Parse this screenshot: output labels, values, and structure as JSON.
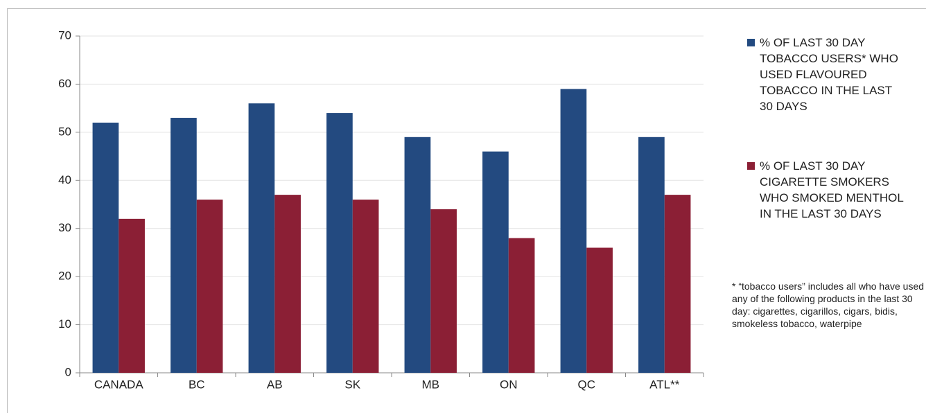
{
  "chart_data": {
    "type": "bar",
    "categories": [
      "CANADA",
      "BC",
      "AB",
      "SK",
      "MB",
      "ON",
      "QC",
      "ATL**"
    ],
    "series": [
      {
        "name": "% OF LAST 30 DAY TOBACCO USERS* WHO USED FLAVOURED TOBACCO IN THE LAST 30 DAYS",
        "color": "#234a80",
        "values": [
          52,
          53,
          56,
          54,
          49,
          46,
          59,
          49
        ]
      },
      {
        "name": "% OF LAST 30 DAY CIGARETTE SMOKERS WHO SMOKED MENTHOL IN THE LAST 30 DAYS",
        "color": "#8b1f35",
        "values": [
          32,
          36,
          37,
          36,
          34,
          28,
          26,
          37
        ]
      }
    ],
    "ylim": [
      0,
      70
    ],
    "yticks": [
      0,
      10,
      20,
      30,
      40,
      50,
      60,
      70
    ],
    "grid": true,
    "legend": "right",
    "footnote": "* “tobacco users” includes all who have used any of the following products in the last 30 day: cigarettes, cigarillos, cigars, bidis, smokeless tobacco, waterpipe"
  }
}
